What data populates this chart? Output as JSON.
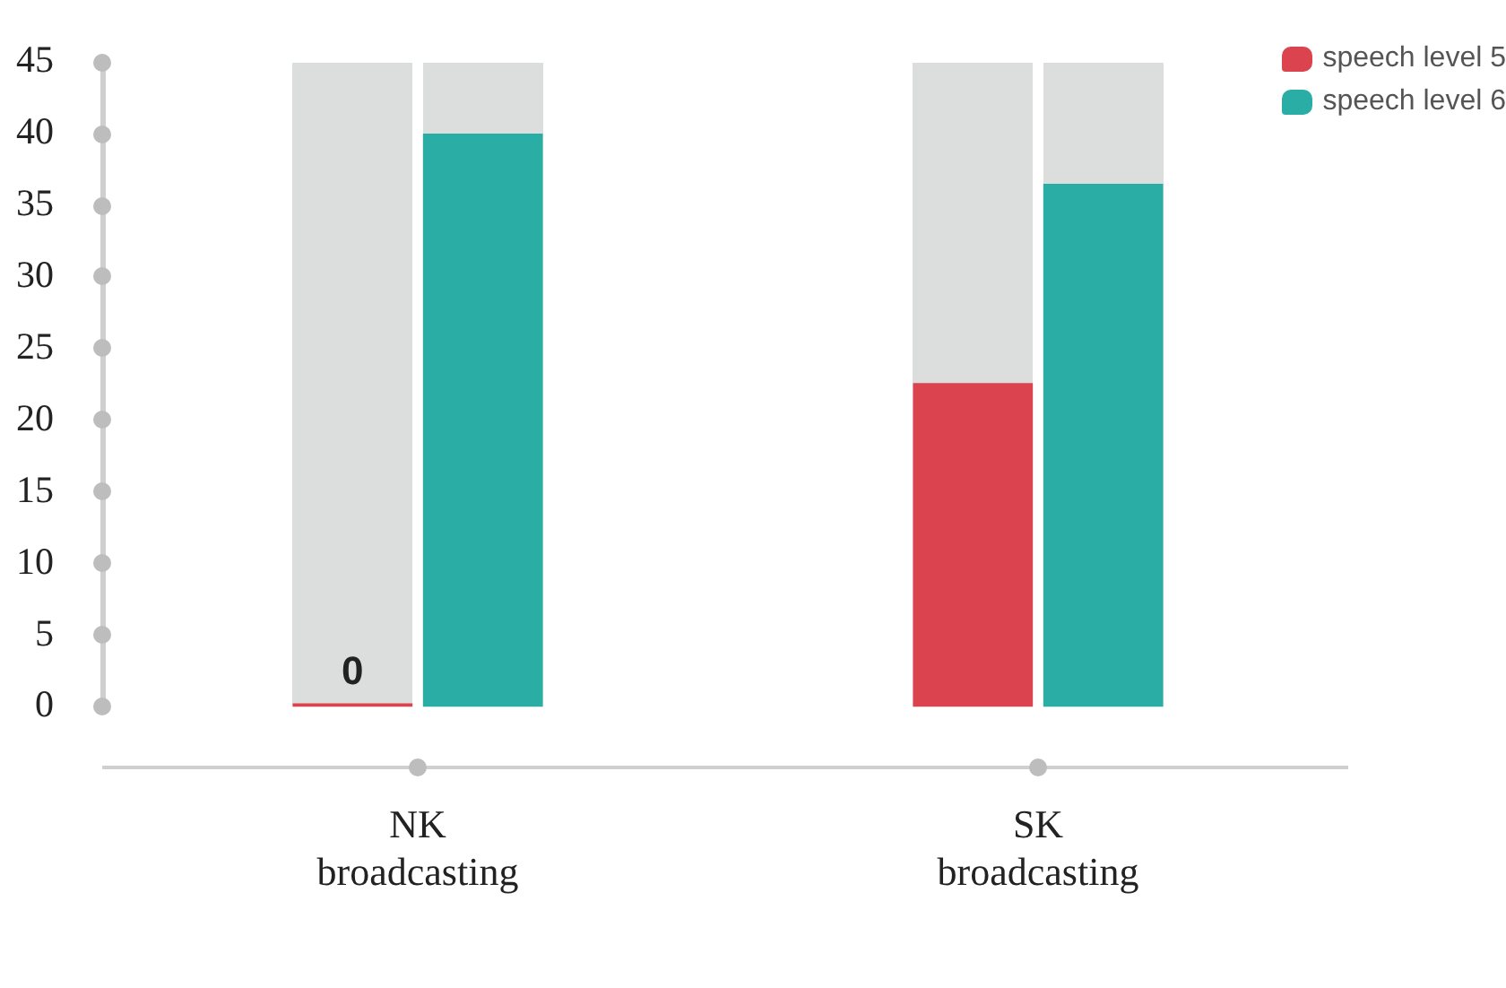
{
  "chart_data": {
    "type": "bar",
    "categories": [
      "NK broadcasting",
      "SK broadcasting"
    ],
    "series": [
      {
        "name": "speech level 5",
        "color": "#db434f",
        "values": [
          0,
          22.6
        ],
        "value_labels": [
          "0",
          null
        ]
      },
      {
        "name": "speech level 6",
        "color": "#2aada5",
        "values": [
          40,
          36.5
        ]
      }
    ],
    "ylim": [
      0,
      45
    ],
    "yticks": [
      0,
      5,
      10,
      15,
      20,
      25,
      30,
      35,
      40,
      45
    ],
    "grid": false,
    "legend": "top right"
  }
}
